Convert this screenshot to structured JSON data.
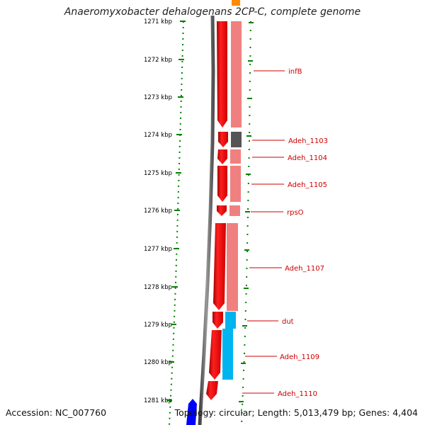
{
  "title": "Anaeromyxobacter dehalogenans 2CP-C, complete genome",
  "ruler_labels": [
    "1271 kbp",
    "1272 kbp",
    "1273 kbp",
    "1274 kbp",
    "1275 kbp",
    "1276 kbp",
    "1277 kbp",
    "1278 kbp",
    "1279 kbp",
    "1280 kbp",
    "1281 kbp"
  ],
  "genes": [
    {
      "label": "infB",
      "color": "#ff0000",
      "cog_color": "#f08080"
    },
    {
      "label": "Adeh_1103",
      "color": "#ff0000",
      "cog_color": "#555555"
    },
    {
      "label": "Adeh_1104",
      "color": "#ff0000",
      "cog_color": "#f08080"
    },
    {
      "label": "Adeh_1105",
      "color": "#ff0000",
      "cog_color": "#f08080"
    },
    {
      "label": "rpsO",
      "color": "#ff0000",
      "cog_color": "#f08080"
    },
    {
      "label": "Adeh_1107",
      "color": "#ff0000",
      "cog_color": "#f08080"
    },
    {
      "label": "dut",
      "color": "#ff0000",
      "cog_color": "#00b4f0"
    },
    {
      "label": "Adeh_1109",
      "color": "#ff0000",
      "cog_color": "#00b4f0"
    },
    {
      "label": "Adeh_1110",
      "color": "#ff0000",
      "cog_color": ""
    }
  ],
  "colors": {
    "forward_strand": "#ff0000",
    "reverse_strand": "#0000ff",
    "cog_light_red": "#f08080",
    "cog_dark_gray": "#555555",
    "cog_blue": "#00b4f0",
    "cog_orange": "#ff8c00",
    "backbone": "#808080",
    "ticks": "#008000",
    "label_text": "#cc0000"
  },
  "footer": {
    "accession": "Accession: NC_007760",
    "summary": "Topology: circular; Length: 5,013,479 bp; Genes: 4,404"
  }
}
